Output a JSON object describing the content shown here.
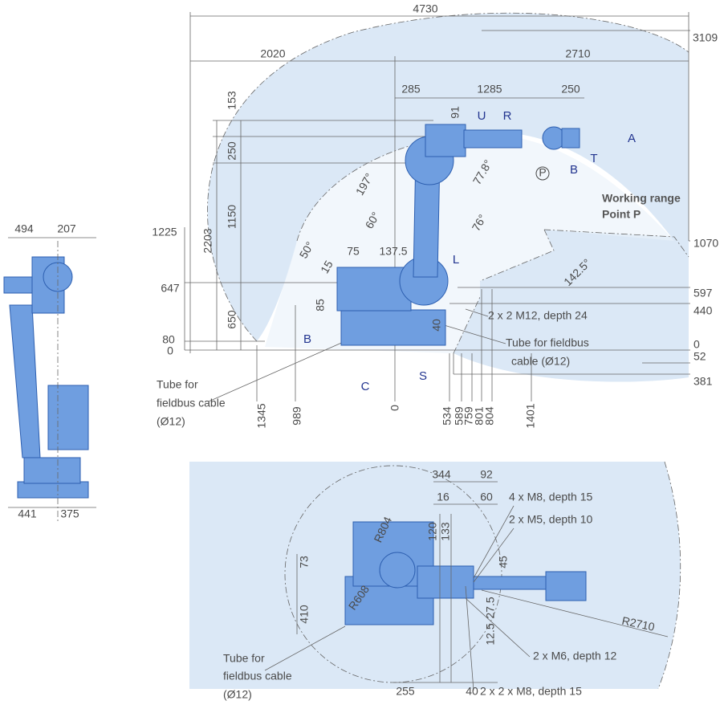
{
  "front_view": {
    "dimensions": [
      "4730",
      "2020",
      "2710",
      "3109",
      "285",
      "1285",
      "250",
      "153",
      "250",
      "1150",
      "2203",
      "650",
      "1225",
      "647",
      "80",
      "0",
      "91",
      "1070",
      "597",
      "440",
      "0",
      "52",
      "381",
      "85",
      "40",
      "75",
      "137.5",
      "15",
      "1345",
      "989",
      "0",
      "534",
      "589",
      "759",
      "801",
      "804",
      "1401"
    ],
    "angles": [
      "197°",
      "77.8°",
      "60°",
      "50°",
      "76°",
      "142.5°"
    ],
    "axis_labels": [
      "U",
      "R",
      "A",
      "B",
      "T",
      "L",
      "B",
      "C",
      "S"
    ],
    "point": "P",
    "working_range": [
      "Working range",
      "Point P"
    ],
    "thread": "2 x 2 M12, depth 24",
    "tube_right": [
      "Tube for fieldbus",
      "cable (Ø12)"
    ],
    "tube_left": [
      "Tube for",
      "fieldbus cable",
      "(Ø12)"
    ]
  },
  "side_view": {
    "dimensions": [
      "494",
      "207",
      "441",
      "375"
    ]
  },
  "top_view": {
    "dimensions": [
      "344",
      "92",
      "16",
      "60",
      "120",
      "133",
      "45",
      "73",
      "410",
      "27.5",
      "12.5",
      "255",
      "40"
    ],
    "radii": [
      "R804",
      "R608",
      "R2710"
    ],
    "threads": [
      "4 x M8, depth 15",
      "2 x M5, depth 10",
      "2 x M6, depth 12",
      "2 x 2 x M8, depth 15"
    ],
    "tube": [
      "Tube for",
      "fieldbus cable",
      "(Ø12)"
    ]
  }
}
